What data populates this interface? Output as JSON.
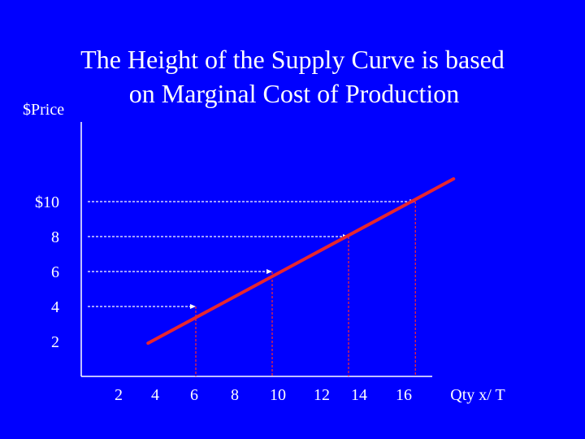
{
  "slide": {
    "title_line1": "The Height of the Supply Curve is based",
    "title_line2": "on Marginal Cost of Production"
  },
  "chart_data": {
    "type": "line",
    "ylabel": "$Price",
    "xlabel": "Qty x/ T",
    "x_ticks": [
      "2",
      "4",
      "6",
      "8",
      "10",
      "12",
      "14",
      "16"
    ],
    "y_ticks": [
      "$10",
      "8",
      "6",
      "4",
      "2"
    ],
    "xlim": [
      0,
      18
    ],
    "ylim": [
      0,
      12
    ],
    "series": [
      {
        "type": "line",
        "x": [
          3.5,
          19.5
        ],
        "y": [
          1.9,
          11.3
        ]
      }
    ],
    "reference_points": [
      {
        "x": 6,
        "y": 4
      },
      {
        "x": 10,
        "y": 6
      },
      {
        "x": 14,
        "y": 8
      },
      {
        "x": 17.5,
        "y": 10
      }
    ],
    "colors": {
      "background": "#0000ff",
      "text": "#ffffff",
      "supply_line": "#e8262e",
      "horizontal_guides": "#ffffff",
      "vertical_guides": "#ff2a2a"
    }
  }
}
